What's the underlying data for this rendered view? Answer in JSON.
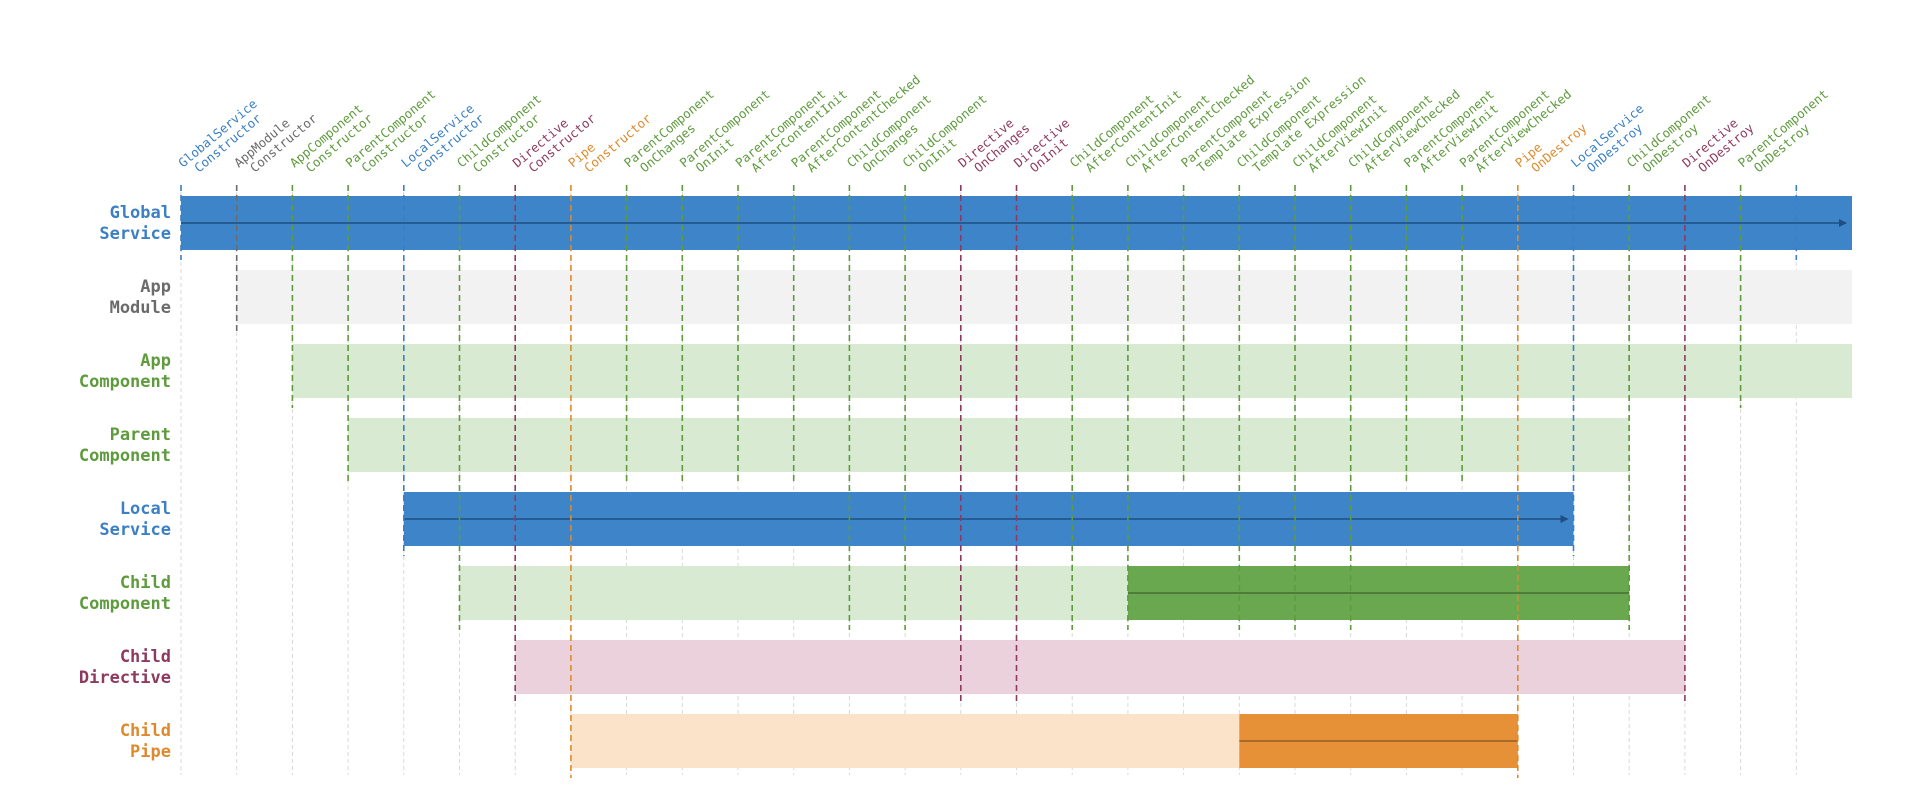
{
  "colors": {
    "blue": "#3b7fc4",
    "gray": "#6b6b6b",
    "green": "#5e9b3d",
    "maroon": "#8e3a5f",
    "orange": "#de8a2c",
    "light_blue": "#3d84c8",
    "light_gray": "#f2f2f2",
    "light_green": "#d9ead3",
    "light_pink": "#ead1dc",
    "light_orange": "#fbe3c9",
    "dark_green": "#6aa84f",
    "dark_orange": "#e69138"
  },
  "events": [
    {
      "lines": [
        "GlobalService",
        "Constructor"
      ],
      "color": "blue"
    },
    {
      "lines": [
        "AppModule",
        "Constructor"
      ],
      "color": "gray"
    },
    {
      "lines": [
        "AppComponent",
        "Constructor"
      ],
      "color": "green"
    },
    {
      "lines": [
        "ParentComponent",
        "Constructor"
      ],
      "color": "green"
    },
    {
      "lines": [
        "LocalService",
        "Constructor"
      ],
      "color": "blue"
    },
    {
      "lines": [
        "ChildComponent",
        "Constructor"
      ],
      "color": "green"
    },
    {
      "lines": [
        "Directive",
        "Constructor"
      ],
      "color": "maroon"
    },
    {
      "lines": [
        "Pipe",
        "Constructor"
      ],
      "color": "orange"
    },
    {
      "lines": [
        "ParentComponent",
        "OnChanges"
      ],
      "color": "green"
    },
    {
      "lines": [
        "ParentComponent",
        "OnInit"
      ],
      "color": "green"
    },
    {
      "lines": [
        "ParentComponent",
        "AfterContentInit"
      ],
      "color": "green"
    },
    {
      "lines": [
        "ParentComponent",
        "AfterContentChecked"
      ],
      "color": "green"
    },
    {
      "lines": [
        "ChildComponent",
        "OnChanges"
      ],
      "color": "green"
    },
    {
      "lines": [
        "ChildComponent",
        "OnInit"
      ],
      "color": "green"
    },
    {
      "lines": [
        "Directive",
        "OnChanges"
      ],
      "color": "maroon"
    },
    {
      "lines": [
        "Directive",
        "OnInit"
      ],
      "color": "maroon"
    },
    {
      "lines": [
        "ChildComponent",
        "AfterContentInit"
      ],
      "color": "green"
    },
    {
      "lines": [
        "ChildComponent",
        "AfterContentChecked"
      ],
      "color": "green"
    },
    {
      "lines": [
        "ParentComponent",
        "Template Expression"
      ],
      "color": "green"
    },
    {
      "lines": [
        "ChildComponent",
        "Template Expression"
      ],
      "color": "green"
    },
    {
      "lines": [
        "ChildComponent",
        "AfterViewInit"
      ],
      "color": "green"
    },
    {
      "lines": [
        "ChildComponent",
        "AfterViewChecked"
      ],
      "color": "green"
    },
    {
      "lines": [
        "ParentComponent",
        "AfterViewInit"
      ],
      "color": "green"
    },
    {
      "lines": [
        "ParentComponent",
        "AfterViewChecked"
      ],
      "color": "green"
    },
    {
      "lines": [
        "Pipe",
        "OnDestroy"
      ],
      "color": "orange"
    },
    {
      "lines": [
        "LocalService",
        "OnDestroy"
      ],
      "color": "blue"
    },
    {
      "lines": [
        "ChildComponent",
        "OnDestroy"
      ],
      "color": "green"
    },
    {
      "lines": [
        "Directive",
        "OnDestroy"
      ],
      "color": "maroon"
    },
    {
      "lines": [
        "ParentComponent",
        "OnDestroy"
      ],
      "color": "green"
    }
  ],
  "rows": [
    {
      "lines": [
        "Global",
        "Service"
      ],
      "color": "blue",
      "line": {
        "start": 0,
        "end": 29,
        "color": "blue"
      },
      "bars": [
        {
          "start": 0,
          "end": 30,
          "fill": "light_blue",
          "arrow": true
        }
      ]
    },
    {
      "lines": [
        "App",
        "Module"
      ],
      "color": "gray",
      "line": {
        "start": 1,
        "end": 1,
        "color": "gray"
      },
      "bars": [
        {
          "start": 1,
          "end": 30,
          "fill": "light_gray"
        }
      ]
    },
    {
      "lines": [
        "App",
        "Component"
      ],
      "color": "green",
      "line": {
        "start": 2,
        "end": 28,
        "color": "green"
      },
      "bars": [
        {
          "start": 2,
          "end": 30,
          "fill": "light_green"
        }
      ]
    },
    {
      "lines": [
        "Parent",
        "Component"
      ],
      "color": "green",
      "line": {
        "start": 3,
        "end": 26,
        "color": "green"
      },
      "bars": [
        {
          "start": 3,
          "end": 26,
          "fill": "light_green"
        }
      ]
    },
    {
      "lines": [
        "Local",
        "Service"
      ],
      "color": "blue",
      "line": {
        "start": 4,
        "end": 25,
        "color": "blue"
      },
      "bars": [
        {
          "start": 4,
          "end": 25,
          "fill": "light_blue",
          "arrow": true
        }
      ]
    },
    {
      "lines": [
        "Child",
        "Component"
      ],
      "color": "green",
      "line": {
        "start": 5,
        "end": 26,
        "color": "green"
      },
      "bars": [
        {
          "start": 5,
          "end": 17,
          "fill": "light_green"
        },
        {
          "start": 17,
          "end": 26,
          "fill": "dark_green",
          "midline": true
        }
      ]
    },
    {
      "lines": [
        "Child",
        "Directive"
      ],
      "color": "maroon",
      "line": {
        "start": 6,
        "end": 27,
        "color": "maroon"
      },
      "bars": [
        {
          "start": 6,
          "end": 27,
          "fill": "light_pink"
        }
      ]
    },
    {
      "lines": [
        "Child",
        "Pipe"
      ],
      "color": "orange",
      "line": {
        "start": 7,
        "end": 24,
        "color": "orange"
      },
      "bars": [
        {
          "start": 7,
          "end": 19,
          "fill": "light_orange"
        },
        {
          "start": 19,
          "end": 24,
          "fill": "dark_orange",
          "midline": true
        }
      ]
    }
  ]
}
